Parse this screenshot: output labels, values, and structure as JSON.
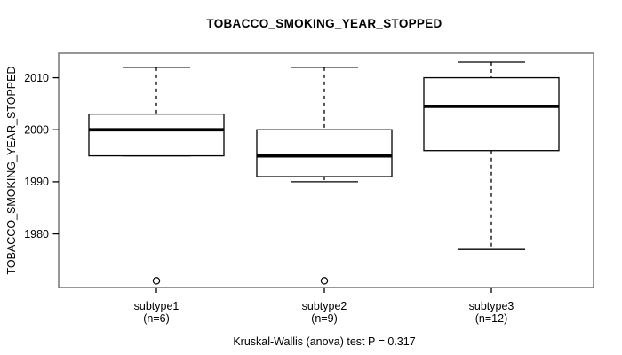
{
  "chart_data": {
    "type": "box",
    "title": "TOBACCO_SMOKING_YEAR_STOPPED",
    "ylabel": "TOBACCO_SMOKING_YEAR_STOPPED",
    "xlabel": "",
    "annotation": "Kruskal-Wallis (anova) test P = 0.317",
    "grid": false,
    "legend": "none",
    "background": "#ffffff",
    "frame_color": "#7d7d7d",
    "box_stroke_color": "#000000",
    "box_fill_color": "#ffffff",
    "yticks": [
      1980,
      1990,
      2000,
      2010
    ],
    "ylim": [
      1969.7,
      2014.7
    ],
    "categories": [
      "subtype1",
      "subtype2",
      "subtype3"
    ],
    "category_sublabels": [
      "(n=6)",
      "(n=9)",
      "(n=12)"
    ],
    "series": [
      {
        "name": "subtype1",
        "n": 6,
        "whisker_low": 1995,
        "q1": 1995,
        "median": 2000,
        "q3": 2003,
        "whisker_high": 2012,
        "outliers": [
          1971
        ]
      },
      {
        "name": "subtype2",
        "n": 9,
        "whisker_low": 1990,
        "q1": 1991,
        "median": 1995,
        "q3": 2000,
        "whisker_high": 2012,
        "outliers": [
          1971
        ]
      },
      {
        "name": "subtype3",
        "n": 12,
        "whisker_low": 1977,
        "q1": 1996,
        "median": 2004.5,
        "q3": 2010,
        "whisker_high": 2013,
        "outliers": []
      }
    ]
  }
}
